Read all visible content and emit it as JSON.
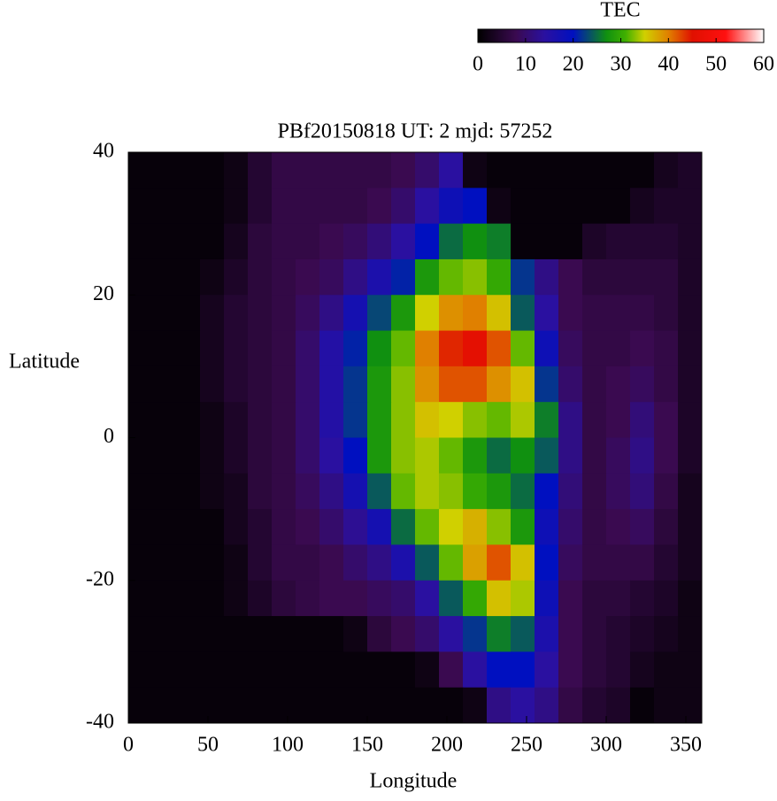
{
  "chart_data": {
    "type": "heatmap",
    "title": "PBf20150818  UT: 2  mjd: 57252",
    "x_label": "Longitude",
    "y_label": "Latitude",
    "colorbar_label": "TEC",
    "xlim": [
      0,
      360
    ],
    "ylim": [
      -40,
      40
    ],
    "clim": [
      0,
      60
    ],
    "xticks": [
      0,
      50,
      100,
      150,
      200,
      250,
      300,
      350
    ],
    "yticks": [
      -40,
      -20,
      0,
      20,
      40
    ],
    "cticks": [
      0,
      10,
      20,
      30,
      40,
      50,
      60
    ],
    "colormap": [
      [
        0,
        "#000000"
      ],
      [
        8,
        "#3a0a50"
      ],
      [
        14,
        "#2a10a0"
      ],
      [
        20,
        "#0010c0"
      ],
      [
        27,
        "#109010"
      ],
      [
        31,
        "#40b000"
      ],
      [
        35,
        "#d0d000"
      ],
      [
        40,
        "#e08000"
      ],
      [
        45,
        "#e01000"
      ],
      [
        52,
        "#ff1010"
      ],
      [
        60,
        "#ffffff"
      ]
    ],
    "x": [
      7.5,
      22.5,
      37.5,
      52.5,
      67.5,
      82.5,
      97.5,
      112.5,
      127.5,
      142.5,
      157.5,
      172.5,
      187.5,
      202.5,
      217.5,
      232.5,
      247.5,
      262.5,
      277.5,
      292.5,
      307.5,
      322.5,
      337.5,
      352.5
    ],
    "y": [
      37.5,
      32.5,
      27.5,
      22.5,
      17.5,
      12.5,
      7.5,
      2.5,
      -2.5,
      -7.5,
      -12.5,
      -17.5,
      -22.5,
      -27.5,
      -32.5,
      -37.5
    ],
    "values": [
      [
        1,
        1,
        1,
        1,
        2,
        5,
        7,
        7,
        7,
        7,
        7,
        8,
        10,
        14,
        2,
        1,
        1,
        1,
        1,
        1,
        1,
        1,
        3,
        4
      ],
      [
        1,
        1,
        1,
        1,
        2,
        5,
        7,
        7,
        7,
        7,
        8,
        10,
        14,
        18,
        20,
        2,
        1,
        1,
        1,
        1,
        1,
        3,
        4,
        4
      ],
      [
        1,
        1,
        1,
        1,
        3,
        6,
        7,
        7,
        8,
        9,
        11,
        14,
        20,
        25,
        27,
        26,
        1,
        1,
        1,
        4,
        5,
        5,
        5,
        4
      ],
      [
        1,
        1,
        1,
        2,
        4,
        6,
        7,
        8,
        9,
        12,
        16,
        21,
        28,
        32,
        33,
        30,
        22,
        12,
        8,
        6,
        6,
        6,
        6,
        4
      ],
      [
        1,
        1,
        1,
        3,
        5,
        6,
        7,
        9,
        12,
        17,
        23,
        28,
        35,
        39,
        40,
        36,
        24,
        14,
        8,
        7,
        7,
        7,
        6,
        4
      ],
      [
        1,
        1,
        1,
        3,
        5,
        6,
        7,
        10,
        15,
        21,
        27,
        32,
        40,
        44,
        46,
        42,
        32,
        18,
        9,
        7,
        7,
        8,
        7,
        4
      ],
      [
        1,
        1,
        1,
        3,
        5,
        6,
        7,
        10,
        15,
        22,
        28,
        33,
        39,
        42,
        42,
        39,
        36,
        22,
        10,
        7,
        8,
        9,
        7,
        4
      ],
      [
        1,
        1,
        1,
        2,
        4,
        6,
        7,
        10,
        15,
        22,
        28,
        33,
        36,
        35,
        33,
        32,
        34,
        26,
        12,
        7,
        8,
        11,
        8,
        4
      ],
      [
        1,
        1,
        1,
        2,
        4,
        6,
        7,
        10,
        14,
        20,
        28,
        33,
        34,
        32,
        28,
        25,
        27,
        24,
        12,
        7,
        9,
        12,
        8,
        4
      ],
      [
        1,
        1,
        1,
        2,
        3,
        6,
        7,
        9,
        12,
        17,
        24,
        32,
        34,
        33,
        30,
        28,
        25,
        20,
        11,
        7,
        9,
        11,
        7,
        3
      ],
      [
        1,
        1,
        1,
        1,
        3,
        5,
        7,
        8,
        10,
        13,
        17,
        25,
        32,
        35,
        37,
        33,
        28,
        18,
        10,
        7,
        8,
        9,
        6,
        3
      ],
      [
        1,
        1,
        1,
        1,
        2,
        5,
        7,
        7,
        8,
        10,
        12,
        16,
        24,
        32,
        38,
        42,
        36,
        20,
        9,
        7,
        7,
        7,
        5,
        3
      ],
      [
        1,
        1,
        1,
        1,
        2,
        4,
        6,
        7,
        8,
        8,
        9,
        10,
        14,
        24,
        30,
        36,
        34,
        18,
        8,
        6,
        6,
        5,
        4,
        2
      ],
      [
        1,
        1,
        1,
        1,
        1,
        1,
        1,
        1,
        1,
        2,
        6,
        8,
        10,
        14,
        22,
        26,
        24,
        16,
        8,
        6,
        5,
        4,
        3,
        2
      ],
      [
        1,
        1,
        1,
        1,
        1,
        1,
        1,
        1,
        1,
        1,
        1,
        1,
        2,
        8,
        14,
        20,
        20,
        14,
        8,
        6,
        5,
        3,
        2,
        2
      ],
      [
        1,
        1,
        1,
        1,
        1,
        1,
        1,
        1,
        1,
        1,
        1,
        1,
        1,
        1,
        2,
        12,
        14,
        12,
        7,
        5,
        4,
        1,
        2,
        2
      ]
    ]
  }
}
